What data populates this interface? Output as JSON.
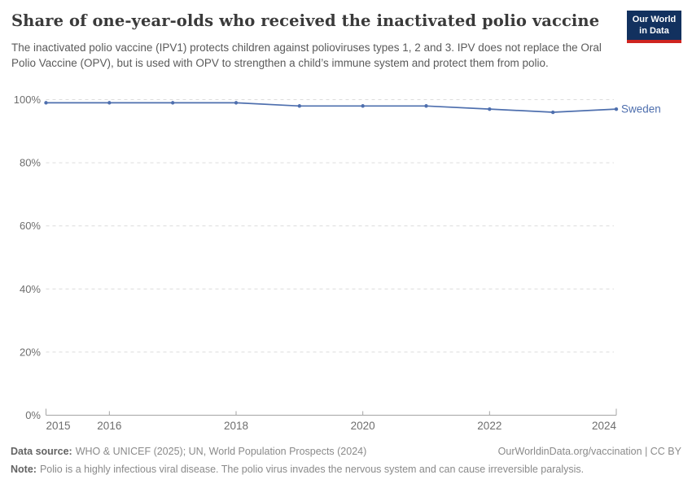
{
  "logo": {
    "line1": "Our World",
    "line2": "in Data",
    "bg_color": "#12315f",
    "accent_color": "#cf2420"
  },
  "chart_data": {
    "type": "line",
    "title": "Share of one-year-olds who received the inactivated polio vaccine",
    "subtitle": "The inactivated polio vaccine (IPV1) protects children against polioviruses types 1, 2 and 3. IPV does not replace the Oral Polio Vaccine (OPV), but is used with OPV to strengthen a child’s immune system and protect them from polio.",
    "x": [
      2015,
      2016,
      2017,
      2018,
      2019,
      2020,
      2021,
      2022,
      2023,
      2024
    ],
    "series": [
      {
        "name": "Sweden",
        "values": [
          99,
          99,
          99,
          99,
          98,
          98,
          98,
          97,
          96,
          97
        ],
        "color": "#4e6fae"
      }
    ],
    "ylim": [
      0,
      100
    ],
    "yticks": [
      {
        "value": 0,
        "label": "0%"
      },
      {
        "value": 20,
        "label": "20%"
      },
      {
        "value": 40,
        "label": "40%"
      },
      {
        "value": 60,
        "label": "60%"
      },
      {
        "value": 80,
        "label": "80%"
      },
      {
        "value": 100,
        "label": "100%"
      }
    ],
    "xticks": [
      {
        "year": 2015,
        "label": "2015",
        "anchor": "start",
        "cap": true
      },
      {
        "year": 2016,
        "label": "2016",
        "anchor": "middle",
        "tick": true
      },
      {
        "year": 2018,
        "label": "2018",
        "anchor": "middle",
        "tick": true
      },
      {
        "year": 2020,
        "label": "2020",
        "anchor": "middle",
        "tick": true
      },
      {
        "year": 2022,
        "label": "2022",
        "anchor": "middle",
        "tick": true
      },
      {
        "year": 2024,
        "label": "2024",
        "anchor": "end",
        "cap": true
      }
    ],
    "grid": "horizontal-dashed",
    "grid_color": "#dcdcdc",
    "axis_color": "#a5a5a5",
    "tick_label_color": "#6e6e6e",
    "legend_position": "end-of-line-label"
  },
  "footer": {
    "source_label": "Data source:",
    "source_text": "WHO & UNICEF (2025); UN, World Population Prospects (2024)",
    "rights": "OurWorldinData.org/vaccination | CC BY",
    "note_label": "Note:",
    "note_text": "Polio is a highly infectious viral disease. The polio virus invades the nervous system and can cause irreversible paralysis."
  }
}
